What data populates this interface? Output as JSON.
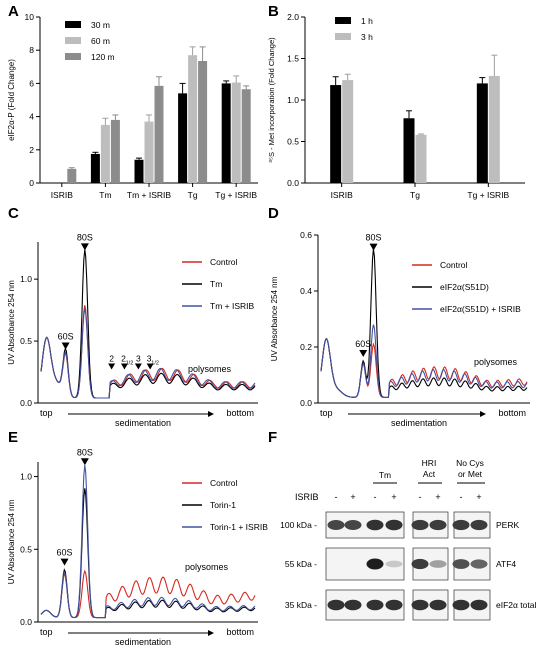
{
  "panels": [
    {
      "letter": "A"
    },
    {
      "letter": "B"
    },
    {
      "letter": "C"
    },
    {
      "letter": "D"
    },
    {
      "letter": "E"
    },
    {
      "letter": "F"
    }
  ],
  "colors": {
    "black": "#000000",
    "light_gray": "#bdbdbd",
    "dark_gray": "#8c8c8c",
    "red": "#d42a20",
    "blue": "#4452a4"
  },
  "chart_data": [
    {
      "panel": "A",
      "type": "bar",
      "ylabel": "eIF2α-P (Fold Change)",
      "ylim": [
        0,
        10
      ],
      "yticks": [
        0,
        2,
        4,
        6,
        8,
        10
      ],
      "categories": [
        "ISRIB",
        "Tm",
        "Tm + ISRIB",
        "Tg",
        "Tg + ISRIB"
      ],
      "series": [
        {
          "name": "30 m",
          "color": "#000000",
          "values": [
            0,
            1.75,
            1.4,
            5.4,
            6.0
          ],
          "errors": [
            0,
            0.1,
            0.1,
            0.6,
            0.15
          ]
        },
        {
          "name": "60 m",
          "color": "#bdbdbd",
          "values": [
            0,
            3.5,
            3.7,
            7.7,
            6.05
          ],
          "errors": [
            0,
            0.4,
            0.4,
            0.5,
            0.4
          ]
        },
        {
          "name": "120 m",
          "color": "#8c8c8c",
          "values": [
            0.85,
            3.8,
            5.85,
            7.35,
            5.65
          ],
          "errors": [
            0.07,
            0.3,
            0.55,
            0.85,
            0.2
          ]
        }
      ],
      "legend": "top-left"
    },
    {
      "panel": "B",
      "type": "bar",
      "ylabel": "³⁵S - Met incorporation (Fold Change)",
      "ylim": [
        0,
        2.0
      ],
      "yticks": [
        0,
        0.5,
        1.0,
        1.5,
        2.0
      ],
      "ytick_labels": [
        "0.0",
        "0.5",
        "1.0",
        "1.5",
        "2.0"
      ],
      "categories": [
        "ISRIB",
        "Tg",
        "Tg + ISRIB"
      ],
      "series": [
        {
          "name": "1 h",
          "color": "#000000",
          "values": [
            1.18,
            0.78,
            1.2
          ],
          "errors": [
            0.1,
            0.09,
            0.07
          ]
        },
        {
          "name": "3 h",
          "color": "#bdbdbd",
          "values": [
            1.24,
            0.58,
            1.29
          ],
          "errors": [
            0.07,
            0.01,
            0.25
          ]
        }
      ],
      "legend": "top-left"
    },
    {
      "panel": "C",
      "type": "line",
      "ylabel": "UV Absorbance 254 nm",
      "ylim": [
        0,
        1.3
      ],
      "yticks": [
        0,
        0.5,
        1.0
      ],
      "ytick_labels": [
        "0.0",
        "0.5",
        "1.0"
      ],
      "x_left": "top",
      "x_right": "bottom",
      "xlabel": "sedimentation",
      "annotations": [
        "80S",
        "60S",
        "2",
        "2",
        "1/2",
        "3",
        "3",
        "1/2",
        "polysomes"
      ],
      "series": [
        {
          "name": "Control",
          "color": "#d42a20",
          "peak_80S": 0.75,
          "peak_60S": 0.32,
          "poly": 0.24
        },
        {
          "name": "Tm",
          "color": "#000000",
          "peak_80S": 1.2,
          "peak_60S": 0.36,
          "poly": 0.2
        },
        {
          "name": "Tm + ISRIB",
          "color": "#4452a4",
          "peak_80S": 0.72,
          "peak_60S": 0.33,
          "poly": 0.24
        }
      ]
    },
    {
      "panel": "D",
      "type": "line",
      "ylabel": "UV Absorbance 254 nm",
      "ylim": [
        0,
        0.6
      ],
      "yticks": [
        0,
        0.2,
        0.4,
        0.6
      ],
      "ytick_labels": [
        "0.0",
        "0.2",
        "0.4",
        "0.6"
      ],
      "x_left": "top",
      "x_right": "bottom",
      "xlabel": "sedimentation",
      "annotations": [
        "80S",
        "60S",
        "polysomes"
      ],
      "series": [
        {
          "name": "Control",
          "color": "#d42a20",
          "peak_80S": 0.19,
          "peak_60S": 0.12,
          "poly": 0.11
        },
        {
          "name": "eIF2α(S51D)",
          "color": "#000000",
          "peak_80S": 0.53,
          "peak_60S": 0.13,
          "poly": 0.07
        },
        {
          "name": "eIF2α(S51D) + ISRIB",
          "color": "#4452a4",
          "peak_80S": 0.26,
          "peak_60S": 0.12,
          "poly": 0.1
        }
      ]
    },
    {
      "panel": "E",
      "type": "line",
      "ylabel": "UV Absorbance 254 nm",
      "ylim": [
        0,
        1.1
      ],
      "yticks": [
        0,
        0.5,
        1.0
      ],
      "ytick_labels": [
        "0.0",
        "0.5",
        "1.0"
      ],
      "x_left": "top",
      "x_right": "bottom",
      "xlabel": "sedimentation",
      "annotations": [
        "80S",
        "60S",
        "polysomes"
      ],
      "series": [
        {
          "name": "Control",
          "color": "#d42a20",
          "peak_80S": 0.32,
          "peak_60S": 0.3,
          "poly": 0.28
        },
        {
          "name": "Torin-1",
          "color": "#000000",
          "peak_80S": 0.89,
          "peak_60S": 0.33,
          "poly": 0.12
        },
        {
          "name": "Torin-1 + ISRIB",
          "color": "#4452a4",
          "peak_80S": 1.05,
          "peak_60S": 0.31,
          "poly": 0.14
        }
      ]
    }
  ],
  "blot": {
    "row_label": "ISRIB",
    "groups": [
      {
        "name": "",
        "signs": [
          "-",
          "+"
        ]
      },
      {
        "name": "Tm",
        "signs": [
          "-",
          "+"
        ]
      },
      {
        "name": "HRI Act",
        "signs": [
          "-",
          "+"
        ]
      },
      {
        "name": "No Cys or Met",
        "signs": [
          "-",
          "+"
        ]
      }
    ],
    "rows": [
      {
        "marker": "100 kDa",
        "protein": "PERK",
        "intensity": [
          0.8,
          0.8,
          0.9,
          0.9,
          0.85,
          0.85,
          0.85,
          0.85
        ]
      },
      {
        "marker": "55 kDa",
        "protein": "ATF4",
        "intensity": [
          0.0,
          0.0,
          1.0,
          0.15,
          0.85,
          0.35,
          0.75,
          0.65
        ]
      },
      {
        "marker": "35 kDa",
        "protein": "eIF2α total",
        "intensity": [
          0.9,
          0.9,
          0.9,
          0.9,
          0.9,
          0.9,
          0.9,
          0.9
        ]
      }
    ]
  }
}
